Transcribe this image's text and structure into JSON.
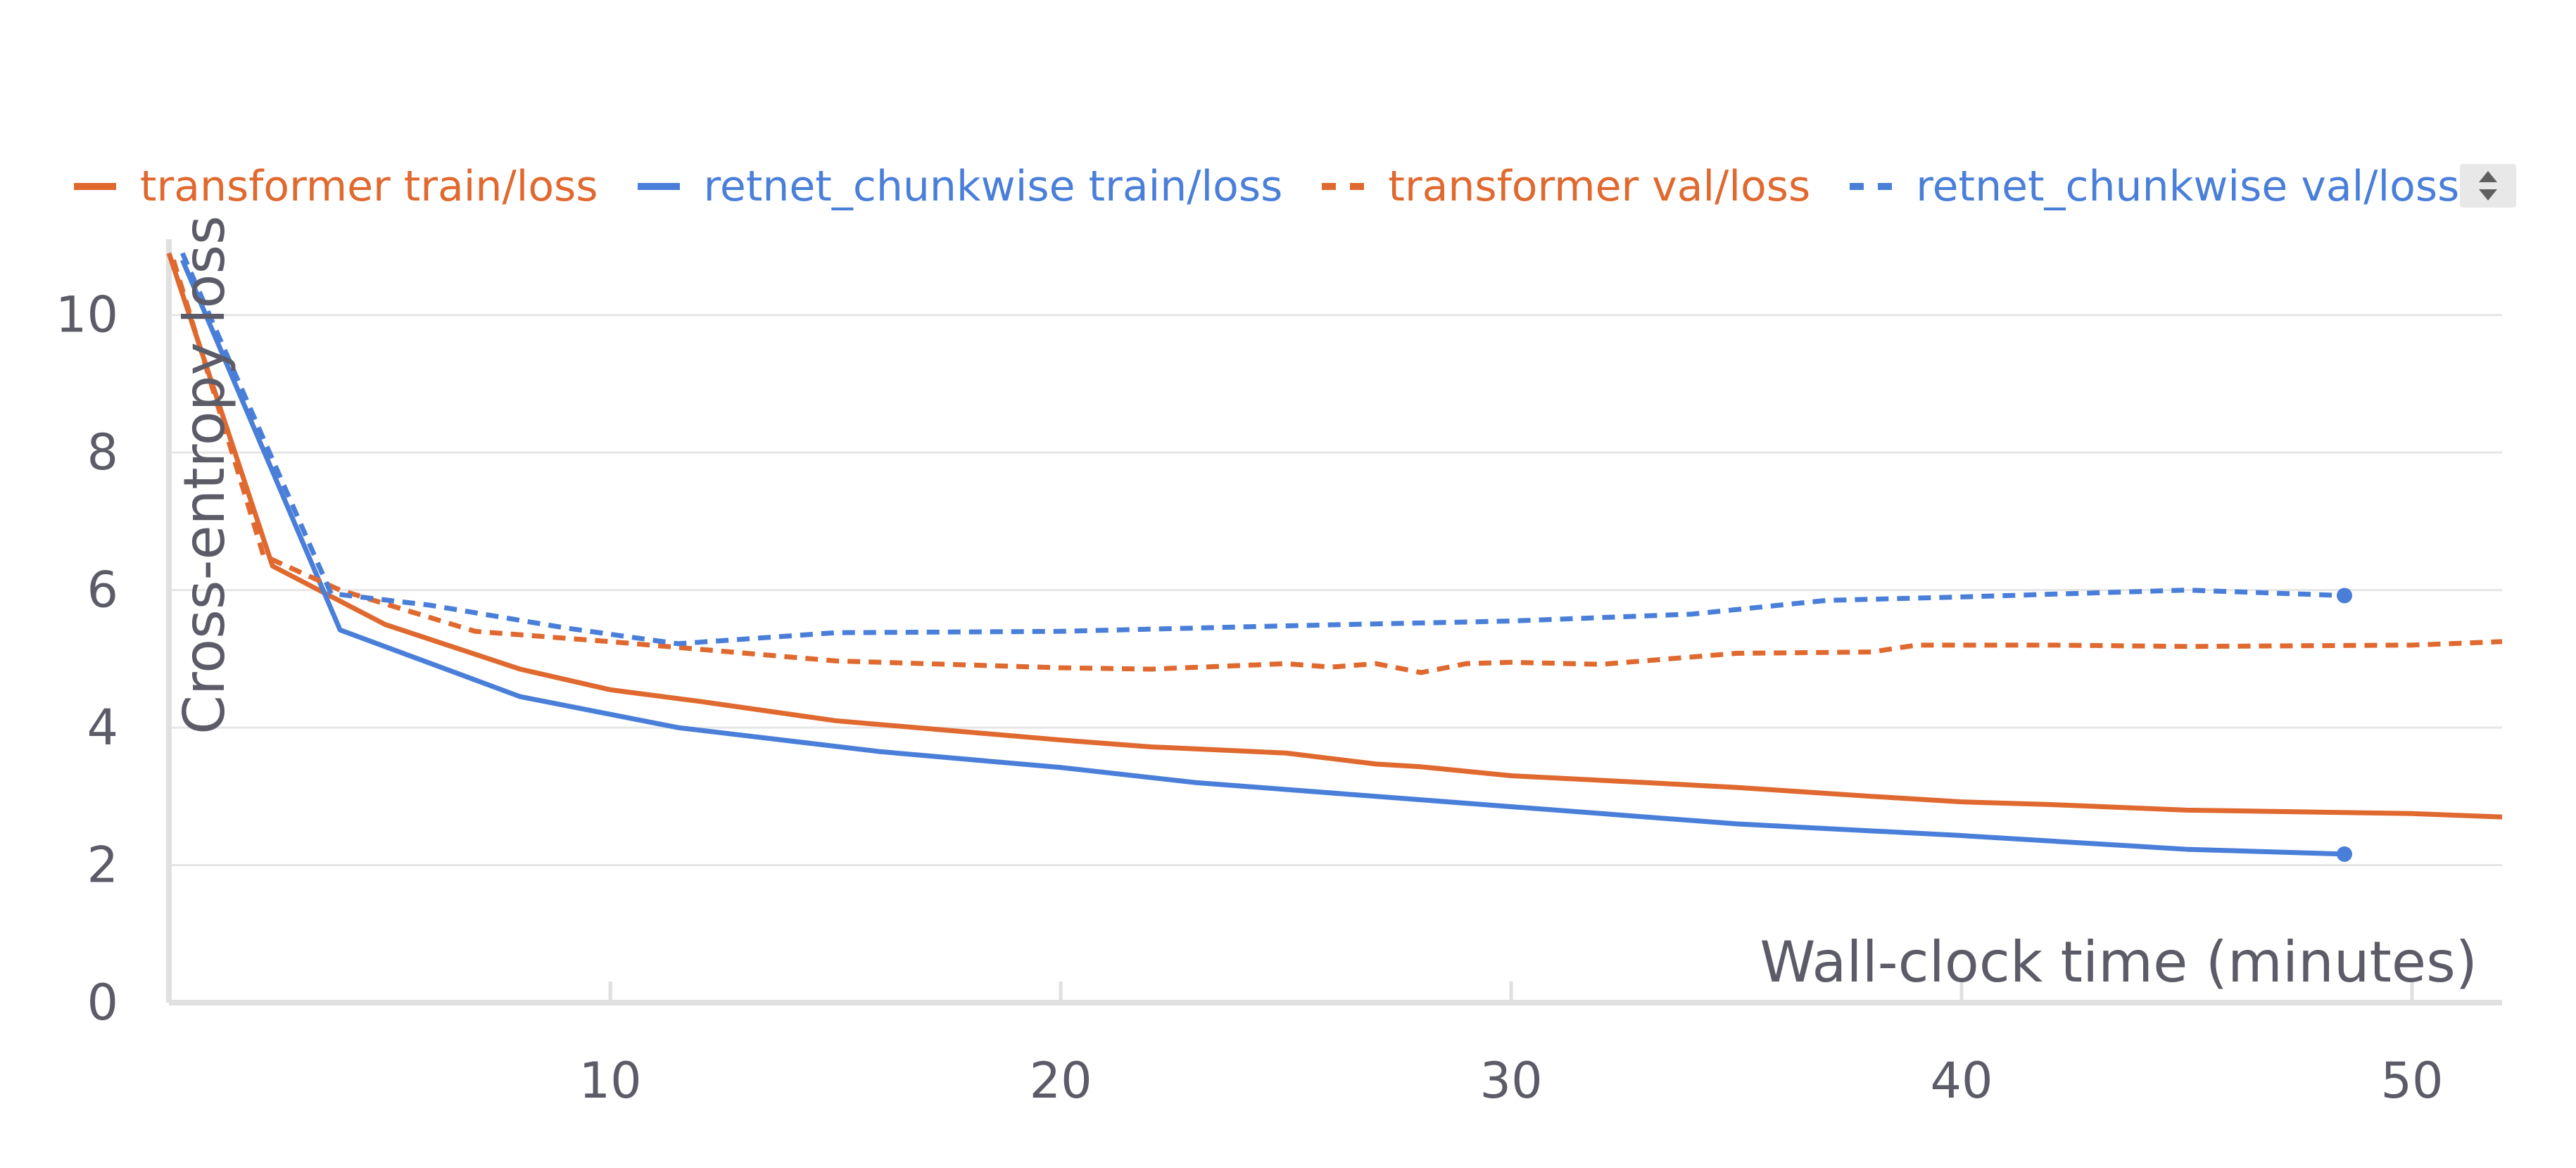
{
  "legend": {
    "items": [
      {
        "label": "transformer train/loss",
        "color": "#E0692F",
        "style": "solid"
      },
      {
        "label": "retnet_chunkwise train/loss",
        "color": "#4A7FD9",
        "style": "solid"
      },
      {
        "label": "transformer val/loss",
        "color": "#E0692F",
        "style": "dashed"
      },
      {
        "label": "retnet_chunkwise val/loss",
        "color": "#4A7FD9",
        "style": "dashed"
      }
    ],
    "scroller_icon": "scroll-up-down-icon"
  },
  "chart_data": {
    "type": "line",
    "title": "",
    "xlabel": "Wall-clock time (minutes)",
    "ylabel": "Cross-entropy loss",
    "xlim": [
      0.2,
      52
    ],
    "ylim": [
      0,
      11
    ],
    "xticks": [
      10,
      20,
      30,
      40,
      50
    ],
    "yticks": [
      0,
      2,
      4,
      6,
      8,
      10
    ],
    "grid": true,
    "legend_position": "top",
    "series": [
      {
        "name": "transformer train/loss",
        "color": "#E0692F",
        "dash": "solid",
        "end_marker": false,
        "x": [
          0.2,
          2.5,
          5,
          8,
          10,
          12,
          15,
          20,
          22,
          25,
          26,
          27,
          28,
          30,
          33,
          35,
          38,
          40,
          42,
          45,
          50,
          52
        ],
        "y": [
          10.9,
          6.35,
          5.5,
          4.85,
          4.55,
          4.38,
          4.1,
          3.82,
          3.72,
          3.63,
          3.55,
          3.47,
          3.43,
          3.3,
          3.2,
          3.13,
          3.0,
          2.92,
          2.88,
          2.8,
          2.75,
          2.7
        ]
      },
      {
        "name": "retnet_chunkwise train/loss",
        "color": "#4A7FD9",
        "dash": "solid",
        "end_marker": true,
        "x": [
          0.5,
          4,
          8,
          11.5,
          16,
          20,
          23,
          30,
          35,
          40,
          45,
          48.5
        ],
        "y": [
          10.8,
          5.42,
          4.45,
          4.0,
          3.65,
          3.42,
          3.2,
          2.85,
          2.6,
          2.43,
          2.23,
          2.16
        ]
      },
      {
        "name": "transformer val/loss",
        "color": "#E0692F",
        "dash": "dashed",
        "end_marker": false,
        "x": [
          0.3,
          2.3,
          4,
          7,
          10,
          15,
          20,
          22,
          25,
          26,
          27,
          28,
          29,
          30,
          32,
          35,
          38,
          39,
          42,
          45,
          50,
          52
        ],
        "y": [
          10.8,
          6.5,
          6.0,
          5.4,
          5.25,
          4.97,
          4.87,
          4.85,
          4.93,
          4.88,
          4.93,
          4.8,
          4.93,
          4.95,
          4.92,
          5.08,
          5.1,
          5.2,
          5.2,
          5.18,
          5.2,
          5.25
        ]
      },
      {
        "name": "retnet_chunkwise val/loss",
        "color": "#4A7FD9",
        "dash": "dashed",
        "end_marker": true,
        "x": [
          0.5,
          3.8,
          6,
          9,
          11.5,
          15,
          20,
          25,
          30,
          34,
          37,
          40,
          45,
          48.5
        ],
        "y": [
          10.9,
          5.95,
          5.78,
          5.45,
          5.22,
          5.38,
          5.4,
          5.48,
          5.55,
          5.65,
          5.85,
          5.9,
          6.0,
          5.92
        ]
      }
    ]
  }
}
